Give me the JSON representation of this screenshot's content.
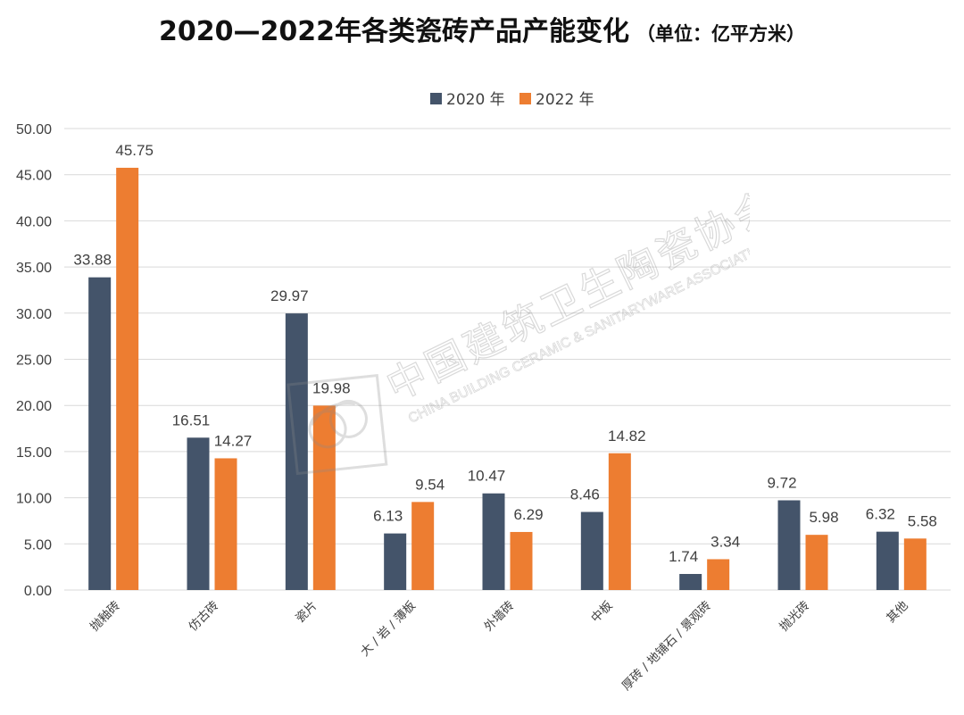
{
  "chart_data": {
    "type": "bar",
    "title": "2020—2022年各类瓷砖产品产能变化",
    "unit_label": "（单位：亿平方米）",
    "xlabel": "",
    "ylabel": "",
    "ylim": [
      0,
      50
    ],
    "yticks": [
      "0.00",
      "5.00",
      "10.00",
      "15.00",
      "20.00",
      "25.00",
      "30.00",
      "35.00",
      "40.00",
      "45.00",
      "50.00"
    ],
    "grid": true,
    "legend_position": "top-center",
    "categories": [
      "抛釉砖",
      "仿古砖",
      "瓷片",
      "大 / 岩 / 薄板",
      "外墙砖",
      "中板",
      "厚砖 / 地铺石 / 景观砖",
      "抛光砖",
      "其他"
    ],
    "series": [
      {
        "name": "2020 年",
        "color": "#44546A",
        "values": [
          33.88,
          16.51,
          29.97,
          6.13,
          10.47,
          8.46,
          1.74,
          9.72,
          6.32
        ],
        "labels": [
          "33.88",
          "16.51",
          "29.97",
          "6.13",
          "10.47",
          "8.46",
          "1.74",
          "9.72",
          "6.32"
        ]
      },
      {
        "name": "2022 年",
        "color": "#ED7D31",
        "values": [
          45.75,
          14.27,
          19.98,
          9.54,
          6.29,
          14.82,
          3.34,
          5.98,
          5.58
        ],
        "labels": [
          "45.75",
          "14.27",
          "19.98",
          "9.54",
          "6.29",
          "14.82",
          "3.34",
          "5.98",
          "5.58"
        ]
      }
    ]
  },
  "watermark": {
    "org_cn": "中国建筑卫生陶瓷协会",
    "org_en": "CHINA BUILDING CERAMIC & SANITARYWARE ASSOCIATION"
  }
}
